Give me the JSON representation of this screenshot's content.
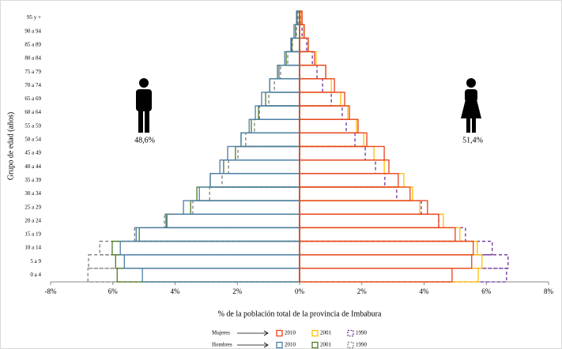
{
  "chart_data": {
    "type": "pyramid",
    "xlabel": "% de la población total de la provincia de Imbabura",
    "ylabel": "Grupo de edad (años)",
    "categories": [
      "0 a 4",
      "5 a 9",
      "10 a 14",
      "15 a 19",
      "20 a 24",
      "25 a 29",
      "30 a 34",
      "35 a 39",
      "40 a 44",
      "45 a 49",
      "50 a 54",
      "55 a 59",
      "60 a 64",
      "65 a 69",
      "70 a 74",
      "75 a 79",
      "80 a 84",
      "85 a 89",
      "90 a 94",
      "95 y +"
    ],
    "xlim": [
      -8,
      8
    ],
    "xticks": [
      {
        "value": -8,
        "label": "-8%"
      },
      {
        "value": -6,
        "label": "6%"
      },
      {
        "value": -4,
        "label": "4%"
      },
      {
        "value": -2,
        "label": "2%"
      },
      {
        "value": 0,
        "label": "0%"
      },
      {
        "value": 2,
        "label": "2%"
      },
      {
        "value": 4,
        "label": "4%"
      },
      {
        "value": 6,
        "label": "6%"
      },
      {
        "value": 8,
        "label": "8%"
      }
    ],
    "grid": false,
    "groups": [
      {
        "name": "Mujeres",
        "share": "51,4%",
        "series": [
          {
            "name": "2010",
            "color": "#e8401c",
            "dashed": false,
            "values": [
              4.9,
              5.53,
              5.58,
              5.0,
              4.47,
              4.11,
              3.55,
              3.17,
              2.87,
              2.72,
              2.16,
              1.88,
              1.6,
              1.45,
              1.12,
              0.84,
              0.48,
              0.28,
              0.15,
              0.08
            ]
          },
          {
            "name": "2001",
            "color": "#ffc000",
            "dashed": false,
            "values": [
              5.74,
              5.86,
              5.71,
              5.15,
              4.62,
              3.86,
              3.63,
              3.35,
              2.72,
              2.39,
              2.06,
              1.83,
              1.55,
              1.32,
              1.02,
              0.84,
              0.53,
              0.28,
              0.13,
              0.05
            ]
          },
          {
            "name": "1990",
            "color": "#7030a0",
            "dashed": true,
            "values": [
              6.65,
              6.7,
              6.19,
              5.33,
              4.47,
              3.91,
              3.12,
              2.74,
              2.44,
              2.11,
              1.78,
              1.5,
              1.37,
              1.02,
              0.74,
              0.56,
              0.41,
              0.23,
              0.08,
              0.03
            ]
          }
        ]
      },
      {
        "name": "Hombres",
        "share": "48,6%",
        "series": [
          {
            "name": "2010",
            "color": "#4a7ea8",
            "dashed": false,
            "values": [
              -5.05,
              -5.63,
              -5.76,
              -5.25,
              -4.26,
              -3.73,
              -3.22,
              -2.87,
              -2.56,
              -2.31,
              -1.88,
              -1.62,
              -1.42,
              -1.22,
              -0.96,
              -0.66,
              -0.48,
              -0.28,
              -0.18,
              -0.1
            ]
          },
          {
            "name": "2001",
            "color": "#4e7a27",
            "dashed": false,
            "values": [
              -5.86,
              -5.91,
              -6.02,
              -5.15,
              -4.29,
              -3.5,
              -3.3,
              -2.87,
              -2.44,
              -2.06,
              -1.88,
              -1.55,
              -1.32,
              -1.09,
              -0.96,
              -0.71,
              -0.43,
              -0.25,
              -0.13,
              -0.08
            ]
          },
          {
            "name": "1990",
            "color": "#7f7f7f",
            "dashed": true,
            "values": [
              -6.8,
              -6.78,
              -6.42,
              -5.3,
              -4.34,
              -3.43,
              -2.89,
              -2.49,
              -2.28,
              -1.98,
              -1.73,
              -1.45,
              -1.29,
              -0.99,
              -0.81,
              -0.61,
              -0.38,
              -0.23,
              -0.1,
              -0.05
            ]
          }
        ]
      }
    ]
  }
}
